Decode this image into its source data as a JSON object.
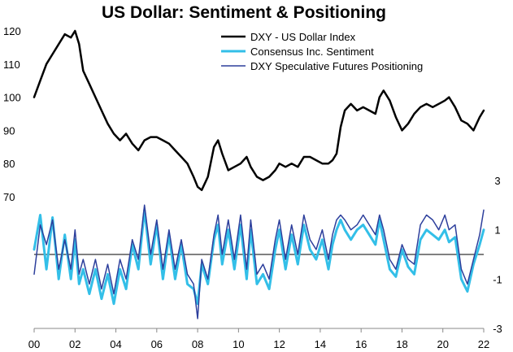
{
  "chart_data": [
    {
      "type": "line",
      "title": "US Dollar: Sentiment & Positioning",
      "x_ticks": [
        "00",
        "02",
        "04",
        "06",
        "08",
        "10",
        "12",
        "14",
        "16",
        "18",
        "20",
        "22"
      ],
      "x_range": [
        2000,
        2022
      ],
      "y_axis": "left",
      "ylim": [
        70,
        120
      ],
      "y_ticks": [
        "70",
        "80",
        "90",
        "100",
        "110",
        "120"
      ],
      "legend_position": "top-right",
      "series": [
        {
          "name": "DXY - US Dollar Index",
          "color": "#000000",
          "x": [
            2000.0,
            2000.3,
            2000.6,
            2000.9,
            2001.2,
            2001.5,
            2001.8,
            2002.0,
            2002.2,
            2002.4,
            2002.7,
            2003.0,
            2003.3,
            2003.6,
            2003.9,
            2004.2,
            2004.5,
            2004.8,
            2005.1,
            2005.4,
            2005.7,
            2006.0,
            2006.3,
            2006.6,
            2006.9,
            2007.2,
            2007.5,
            2007.8,
            2008.0,
            2008.2,
            2008.5,
            2008.8,
            2009.0,
            2009.2,
            2009.5,
            2009.8,
            2010.1,
            2010.4,
            2010.6,
            2010.9,
            2011.2,
            2011.5,
            2011.8,
            2012.0,
            2012.3,
            2012.6,
            2012.9,
            2013.2,
            2013.5,
            2013.8,
            2014.1,
            2014.4,
            2014.6,
            2014.8,
            2015.0,
            2015.2,
            2015.5,
            2015.8,
            2016.1,
            2016.4,
            2016.7,
            2016.9,
            2017.1,
            2017.4,
            2017.7,
            2018.0,
            2018.3,
            2018.6,
            2018.9,
            2019.2,
            2019.5,
            2019.8,
            2020.1,
            2020.3,
            2020.6,
            2020.9,
            2021.2,
            2021.5,
            2021.8,
            2022.0
          ],
          "values": [
            100,
            105,
            110,
            113,
            116,
            119,
            118,
            120,
            116,
            108,
            104,
            100,
            96,
            92,
            89,
            87,
            89,
            86,
            84,
            87,
            88,
            88,
            87,
            86,
            84,
            82,
            80,
            76,
            73,
            72,
            76,
            85,
            87,
            83,
            78,
            79,
            80,
            82,
            79,
            76,
            75,
            76,
            78,
            80,
            79,
            80,
            79,
            82,
            82,
            81,
            80,
            80,
            81,
            83,
            91,
            96,
            98,
            96,
            97,
            96,
            95,
            100,
            102,
            99,
            94,
            90,
            92,
            95,
            97,
            98,
            97,
            98,
            99,
            100,
            97,
            93,
            92,
            90,
            94,
            96
          ]
        }
      ]
    },
    {
      "type": "line",
      "x_range": [
        2000,
        2022
      ],
      "y_axis": "right",
      "ylim": [
        -3,
        3
      ],
      "y_ticks": [
        "3",
        "1",
        "-1",
        "-3"
      ],
      "zero_line": true,
      "series": [
        {
          "name": "Consensus Inc. Sentiment",
          "color": "#33bfe8",
          "x": [
            2000.0,
            2000.3,
            2000.6,
            2000.9,
            2001.2,
            2001.5,
            2001.8,
            2002.0,
            2002.2,
            2002.4,
            2002.7,
            2003.0,
            2003.3,
            2003.6,
            2003.9,
            2004.2,
            2004.5,
            2004.8,
            2005.1,
            2005.4,
            2005.7,
            2006.0,
            2006.3,
            2006.6,
            2006.9,
            2007.2,
            2007.5,
            2007.8,
            2008.0,
            2008.2,
            2008.5,
            2008.8,
            2009.0,
            2009.2,
            2009.5,
            2009.8,
            2010.1,
            2010.4,
            2010.6,
            2010.9,
            2011.2,
            2011.5,
            2011.8,
            2012.0,
            2012.3,
            2012.6,
            2012.9,
            2013.2,
            2013.5,
            2013.8,
            2014.1,
            2014.4,
            2014.6,
            2014.8,
            2015.0,
            2015.2,
            2015.5,
            2015.8,
            2016.1,
            2016.4,
            2016.7,
            2016.9,
            2017.1,
            2017.4,
            2017.7,
            2018.0,
            2018.3,
            2018.6,
            2018.9,
            2019.2,
            2019.5,
            2019.8,
            2020.1,
            2020.3,
            2020.6,
            2020.9,
            2021.2,
            2021.5,
            2021.8,
            2022.0
          ],
          "values": [
            0.2,
            1.6,
            -0.6,
            1.5,
            -1.0,
            0.8,
            -1.0,
            0.6,
            -1.2,
            -0.6,
            -1.6,
            -0.6,
            -1.8,
            -0.8,
            -2.0,
            -0.6,
            -1.4,
            0.4,
            -0.6,
            1.8,
            -0.4,
            1.2,
            -1.0,
            0.8,
            -1.0,
            0.4,
            -1.2,
            -1.4,
            -2.0,
            -0.4,
            -1.2,
            0.6,
            1.2,
            -0.4,
            1.0,
            -0.6,
            1.2,
            -1.0,
            1.0,
            -1.2,
            -0.8,
            -1.4,
            0.2,
            1.0,
            -0.6,
            0.8,
            -0.4,
            1.2,
            0.2,
            -0.2,
            0.6,
            -0.6,
            0.4,
            1.0,
            1.4,
            1.0,
            0.6,
            1.0,
            1.2,
            0.8,
            0.4,
            1.4,
            0.6,
            -0.6,
            -0.9,
            0.2,
            -0.5,
            -0.8,
            0.6,
            1.0,
            0.8,
            0.6,
            1.0,
            0.5,
            0.7,
            -1.0,
            -1.5,
            -0.4,
            0.4,
            1.0
          ]
        },
        {
          "name": "DXY Speculative Futures Positioning",
          "color": "#2d3f9c",
          "x": [
            2000.0,
            2000.3,
            2000.6,
            2000.9,
            2001.2,
            2001.5,
            2001.8,
            2002.0,
            2002.2,
            2002.4,
            2002.7,
            2003.0,
            2003.3,
            2003.6,
            2003.9,
            2004.2,
            2004.5,
            2004.8,
            2005.1,
            2005.4,
            2005.7,
            2006.0,
            2006.3,
            2006.6,
            2006.9,
            2007.2,
            2007.5,
            2007.8,
            2008.0,
            2008.2,
            2008.5,
            2008.8,
            2009.0,
            2009.2,
            2009.5,
            2009.8,
            2010.1,
            2010.4,
            2010.6,
            2010.9,
            2011.2,
            2011.5,
            2011.8,
            2012.0,
            2012.3,
            2012.6,
            2012.9,
            2013.2,
            2013.5,
            2013.8,
            2014.1,
            2014.4,
            2014.6,
            2014.8,
            2015.0,
            2015.2,
            2015.5,
            2015.8,
            2016.1,
            2016.4,
            2016.7,
            2016.9,
            2017.1,
            2017.4,
            2017.7,
            2018.0,
            2018.3,
            2018.6,
            2018.9,
            2019.2,
            2019.5,
            2019.8,
            2020.1,
            2020.3,
            2020.6,
            2020.9,
            2021.2,
            2021.5,
            2021.8,
            2022.0
          ],
          "values": [
            -0.8,
            1.2,
            0.4,
            1.4,
            -0.6,
            0.6,
            -0.6,
            1.0,
            -0.8,
            -0.2,
            -1.2,
            -0.2,
            -1.4,
            -0.4,
            -1.6,
            -0.2,
            -1.0,
            0.6,
            -0.2,
            2.0,
            0.0,
            1.4,
            -0.6,
            1.0,
            -0.6,
            0.6,
            -0.8,
            -1.2,
            -2.6,
            -0.2,
            -1.0,
            0.8,
            1.6,
            0.0,
            1.4,
            -0.2,
            1.6,
            -0.6,
            1.4,
            -0.8,
            -0.4,
            -1.0,
            0.6,
            1.4,
            -0.2,
            1.2,
            0.0,
            1.6,
            0.6,
            0.2,
            1.0,
            -0.2,
            0.8,
            1.4,
            1.6,
            1.4,
            1.0,
            1.2,
            1.6,
            1.2,
            0.8,
            1.6,
            1.0,
            -0.2,
            -0.6,
            0.4,
            -0.2,
            -0.4,
            1.2,
            1.6,
            1.4,
            1.0,
            1.6,
            1.0,
            1.2,
            -0.6,
            -1.2,
            -0.2,
            0.8,
            1.8
          ]
        }
      ]
    }
  ]
}
